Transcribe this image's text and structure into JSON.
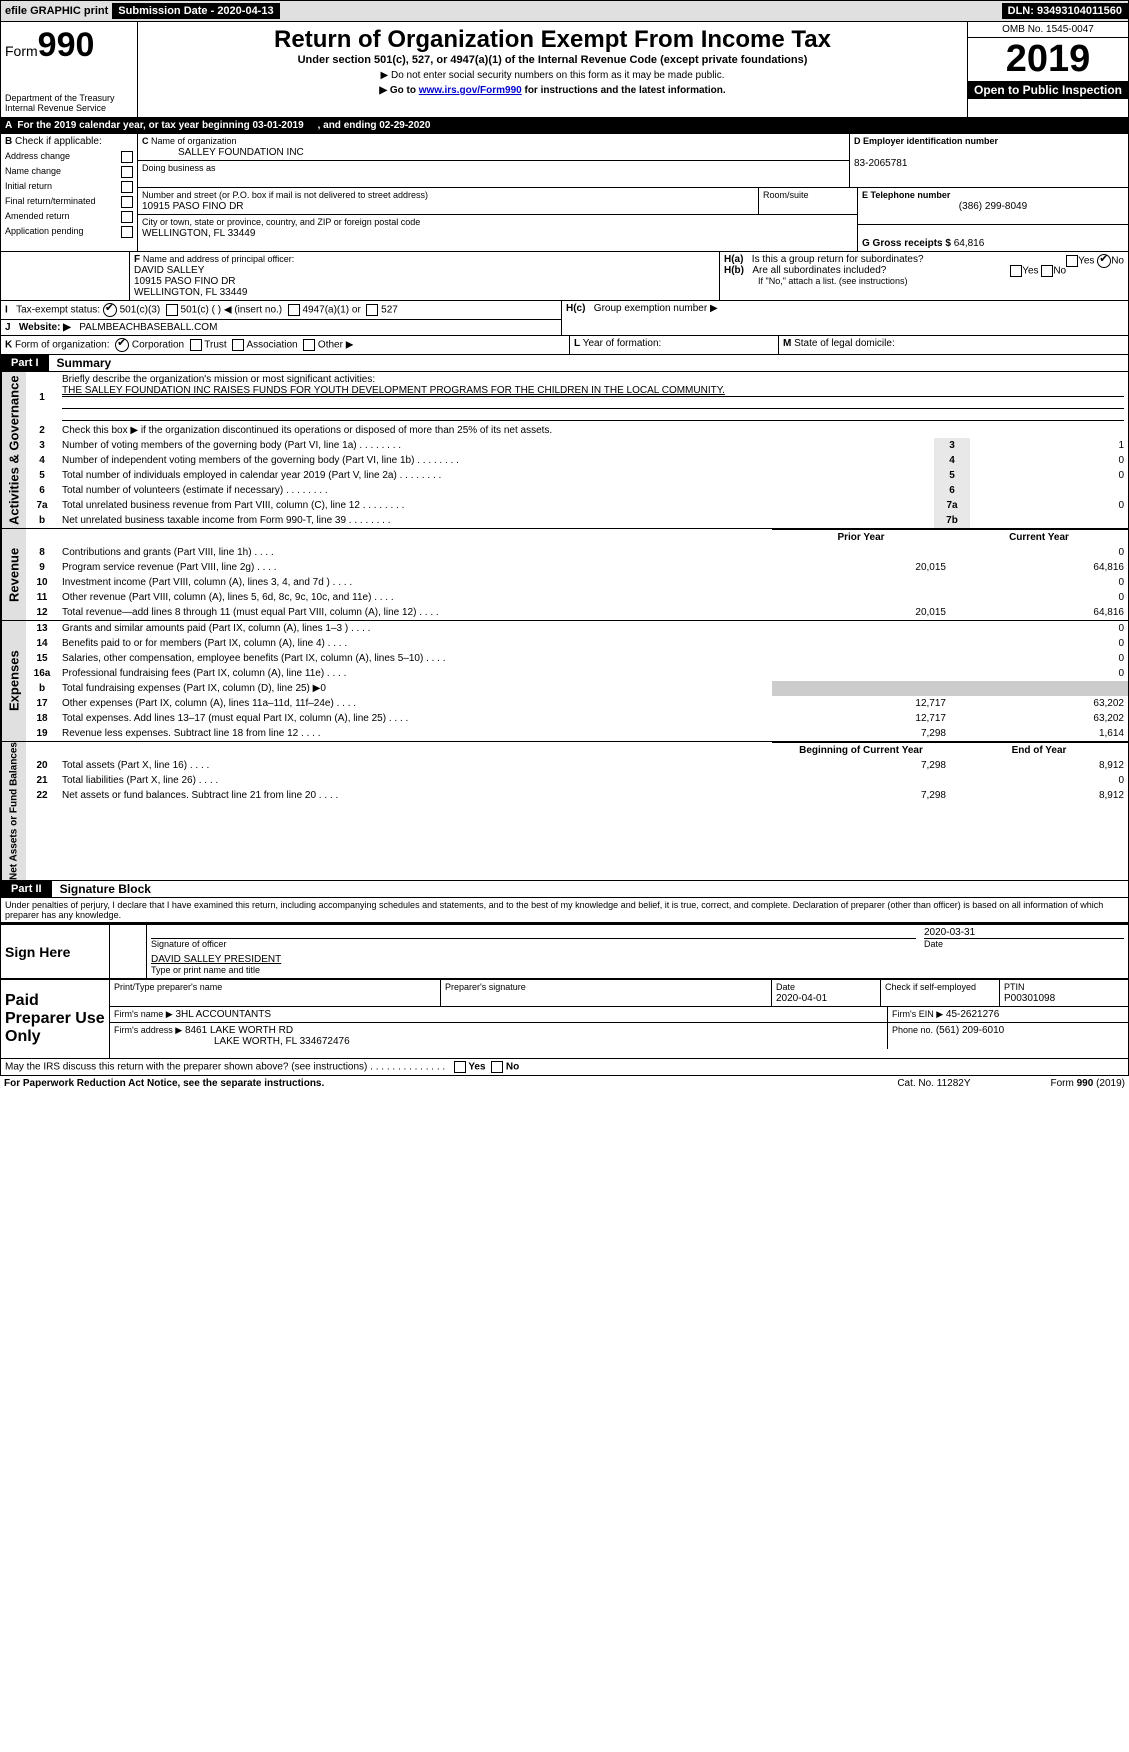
{
  "topbar": {
    "efile": "efile GRAPHIC  print",
    "sub": "Submission Date - 2020-04-13",
    "dln": "DLN: 93493104011560"
  },
  "hdr": {
    "form_small": "Form",
    "form_big": "990",
    "dept": "Department of the Treasury\nInternal Revenue Service",
    "title": "Return of Organization Exempt From Income Tax",
    "sub1": "Under section 501(c), 527, or 4947(a)(1) of the Internal Revenue Code (except private foundations)",
    "sub2": "▶ Do not enter social security numbers on this form as it may be made public.",
    "sub3_pre": "▶ Go to ",
    "sub3_link": "www.irs.gov/Form990",
    "sub3_post": " for instructions and the latest information.",
    "omb": "OMB No. 1545-0047",
    "year": "2019",
    "open": "Open to Public Inspection"
  },
  "a": {
    "line": "For the 2019 calendar year, or tax year beginning 03-01-2019",
    "ending": ", and ending 02-29-2020"
  },
  "b": {
    "label": "Check if applicable:",
    "opts": [
      "Address change",
      "Name change",
      "Initial return",
      "Final return/terminated",
      "Amended return",
      "Application pending"
    ]
  },
  "c": {
    "name_lbl": "Name of organization",
    "name": "SALLEY FOUNDATION INC",
    "dba_lbl": "Doing business as",
    "dba": "",
    "street_lbl": "Number and street (or P.O. box if mail is not delivered to street address)",
    "street": "10915 PASO FINO DR",
    "room_lbl": "Room/suite",
    "city_lbl": "City or town, state or province, country, and ZIP or foreign postal code",
    "city": "WELLINGTON, FL  33449"
  },
  "d": {
    "lbl": "D Employer identification number",
    "val": "83-2065781"
  },
  "e": {
    "lbl": "E Telephone number",
    "val": "(386) 299-8049"
  },
  "g": {
    "lbl": "G Gross receipts $",
    "val": "64,816"
  },
  "f": {
    "lbl": "Name and address of principal officer:",
    "name": "DAVID SALLEY",
    "addr1": "10915 PASO FINO DR",
    "addr2": "WELLINGTON, FL  33449"
  },
  "h": {
    "a": "Is this a group return for subordinates?",
    "a_no": true,
    "b": "Are all subordinates included?",
    "b_note": "If \"No,\" attach a list. (see instructions)",
    "c": "Group exemption number ▶"
  },
  "i": {
    "lbl": "Tax-exempt status:",
    "opts": [
      "501(c)(3)",
      "501(c) (  ) ◀ (insert no.)",
      "4947(a)(1) or",
      "527"
    ],
    "checked": 0
  },
  "j": {
    "lbl": "Website: ▶",
    "val": "PALMBEACHBASEBALL.COM"
  },
  "k": {
    "lbl": "Form of organization:",
    "opts": [
      "Corporation",
      "Trust",
      "Association",
      "Other ▶"
    ],
    "checked": 0
  },
  "l": {
    "lbl": "Year of formation:"
  },
  "m": {
    "lbl": "State of legal domicile:"
  },
  "part1": {
    "tab": "Part I",
    "title": "Summary"
  },
  "summary": {
    "l1": "Briefly describe the organization's mission or most significant activities:",
    "l1v": "THE SALLEY FOUNDATION INC RAISES FUNDS FOR YOUTH DEVELOPMENT PROGRAMS FOR THE CHILDREN IN THE LOCAL COMMUNITY.",
    "l2": "Check this box ▶  if the organization discontinued its operations or disposed of more than 25% of its net assets.",
    "rows_a": [
      {
        "n": "3",
        "t": "Number of voting members of the governing body (Part VI, line 1a)",
        "r": "3",
        "v": "1"
      },
      {
        "n": "4",
        "t": "Number of independent voting members of the governing body (Part VI, line 1b)",
        "r": "4",
        "v": "0"
      },
      {
        "n": "5",
        "t": "Total number of individuals employed in calendar year 2019 (Part V, line 2a)",
        "r": "5",
        "v": "0"
      },
      {
        "n": "6",
        "t": "Total number of volunteers (estimate if necessary)",
        "r": "6",
        "v": ""
      },
      {
        "n": "7a",
        "t": "Total unrelated business revenue from Part VIII, column (C), line 12",
        "r": "7a",
        "v": "0"
      },
      {
        "n": "b",
        "t": "Net unrelated business taxable income from Form 990-T, line 39",
        "r": "7b",
        "v": ""
      }
    ],
    "col_prior": "Prior Year",
    "col_cur": "Current Year",
    "rev": [
      {
        "n": "8",
        "t": "Contributions and grants (Part VIII, line 1h)",
        "p": "",
        "c": "0"
      },
      {
        "n": "9",
        "t": "Program service revenue (Part VIII, line 2g)",
        "p": "20,015",
        "c": "64,816"
      },
      {
        "n": "10",
        "t": "Investment income (Part VIII, column (A), lines 3, 4, and 7d )",
        "p": "",
        "c": "0"
      },
      {
        "n": "11",
        "t": "Other revenue (Part VIII, column (A), lines 5, 6d, 8c, 9c, 10c, and 11e)",
        "p": "",
        "c": "0"
      },
      {
        "n": "12",
        "t": "Total revenue—add lines 8 through 11 (must equal Part VIII, column (A), line 12)",
        "p": "20,015",
        "c": "64,816"
      }
    ],
    "exp": [
      {
        "n": "13",
        "t": "Grants and similar amounts paid (Part IX, column (A), lines 1–3 )",
        "p": "",
        "c": "0"
      },
      {
        "n": "14",
        "t": "Benefits paid to or for members (Part IX, column (A), line 4)",
        "p": "",
        "c": "0"
      },
      {
        "n": "15",
        "t": "Salaries, other compensation, employee benefits (Part IX, column (A), lines 5–10)",
        "p": "",
        "c": "0"
      },
      {
        "n": "16a",
        "t": "Professional fundraising fees (Part IX, column (A), line 11e)",
        "p": "",
        "c": "0"
      },
      {
        "n": "b",
        "t": "Total fundraising expenses (Part IX, column (D), line 25) ▶0",
        "p": "",
        "c": "",
        "noval": true
      },
      {
        "n": "17",
        "t": "Other expenses (Part IX, column (A), lines 11a–11d, 11f–24e)",
        "p": "12,717",
        "c": "63,202"
      },
      {
        "n": "18",
        "t": "Total expenses. Add lines 13–17 (must equal Part IX, column (A), line 25)",
        "p": "12,717",
        "c": "63,202"
      },
      {
        "n": "19",
        "t": "Revenue less expenses. Subtract line 18 from line 12",
        "p": "7,298",
        "c": "1,614"
      }
    ],
    "col_beg": "Beginning of Current Year",
    "col_end": "End of Year",
    "net": [
      {
        "n": "20",
        "t": "Total assets (Part X, line 16)",
        "p": "7,298",
        "c": "8,912"
      },
      {
        "n": "21",
        "t": "Total liabilities (Part X, line 26)",
        "p": "",
        "c": "0"
      },
      {
        "n": "22",
        "t": "Net assets or fund balances. Subtract line 21 from line 20",
        "p": "7,298",
        "c": "8,912"
      }
    ]
  },
  "sidebar": {
    "gov": "Activities & Governance",
    "rev": "Revenue",
    "exp": "Expenses",
    "net": "Net Assets or Fund Balances"
  },
  "part2": {
    "tab": "Part II",
    "title": "Signature Block",
    "perjury": "Under penalties of perjury, I declare that I have examined this return, including accompanying schedules and statements, and to the best of my knowledge and belief, it is true, correct, and complete. Declaration of preparer (other than officer) is based on all information of which preparer has any knowledge."
  },
  "sign": {
    "here": "Sign Here",
    "sig_lbl": "Signature of officer",
    "date_lbl": "Date",
    "date": "2020-03-31",
    "name": "DAVID SALLEY  PRESIDENT",
    "name_lbl": "Type or print name and title"
  },
  "paid": {
    "lbl": "Paid Preparer Use Only",
    "h1": "Print/Type preparer's name",
    "h2": "Preparer's signature",
    "h3": "Date",
    "h3v": "2020-04-01",
    "check_lbl": "Check        if self-employed",
    "ptin_lbl": "PTIN",
    "ptin": "P00301098",
    "firm_lbl": "Firm's name   ▶",
    "firm": "3HL ACCOUNTANTS",
    "ein_lbl": "Firm's EIN ▶",
    "ein": "45-2621276",
    "addr_lbl": "Firm's address ▶",
    "addr1": "8461 LAKE WORTH RD",
    "addr2": "LAKE WORTH, FL  334672476",
    "phone_lbl": "Phone no.",
    "phone": "(561) 209-6010"
  },
  "discuss": "May the IRS discuss this return with the preparer shown above? (see instructions)",
  "footer": {
    "l": "For Paperwork Reduction Act Notice, see the separate instructions.",
    "c": "Cat. No. 11282Y",
    "r": "Form 990 (2019)"
  }
}
